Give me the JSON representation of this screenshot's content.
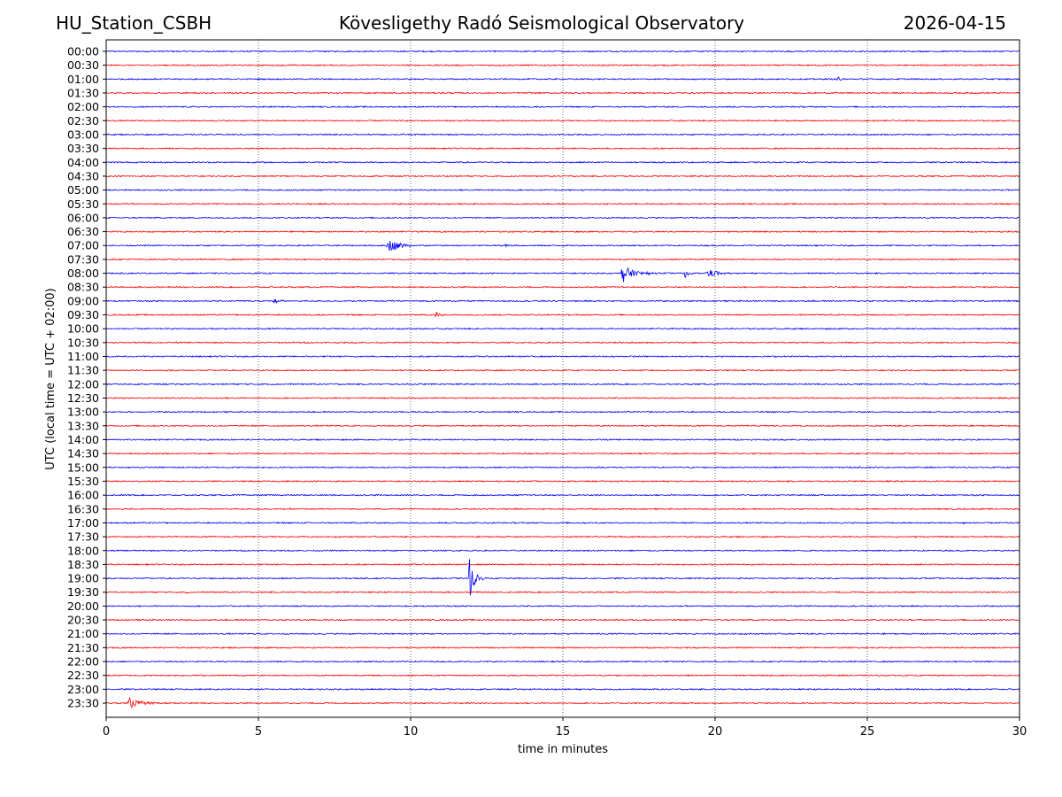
{
  "header": {
    "station": "HU_Station_CSBH",
    "observatory": "Kövesligethy Radó Seismological Observatory",
    "date": "2026-04-15"
  },
  "chart_data": {
    "type": "line",
    "xlabel": "time in minutes",
    "ylabel": "UTC (local time = UTC + 02:00)",
    "xlim": [
      0,
      30
    ],
    "xticks": [
      0,
      5,
      10,
      15,
      20,
      25,
      30
    ],
    "grid": "vertical dotted lines at x ticks",
    "colors": [
      "#0000ff",
      "#ff0000"
    ],
    "rows": [
      "00:00",
      "00:30",
      "01:00",
      "01:30",
      "02:00",
      "02:30",
      "03:00",
      "03:30",
      "04:00",
      "04:30",
      "05:00",
      "05:30",
      "06:00",
      "06:30",
      "07:00",
      "07:30",
      "08:00",
      "08:30",
      "09:00",
      "09:30",
      "10:00",
      "10:30",
      "11:00",
      "11:30",
      "12:00",
      "12:30",
      "13:00",
      "13:30",
      "14:00",
      "14:30",
      "15:00",
      "15:30",
      "16:00",
      "16:30",
      "17:00",
      "17:30",
      "18:00",
      "18:30",
      "19:00",
      "19:30",
      "20:00",
      "20:30",
      "21:00",
      "21:30",
      "22:00",
      "22:30",
      "23:00",
      "23:30"
    ],
    "events": [
      {
        "row": "01:00",
        "start_min": 24.0,
        "duration_min": 0.3,
        "amplitude": 0.35
      },
      {
        "row": "01:00",
        "start_min": 19.3,
        "duration_min": 0.25,
        "amplitude": 0.15
      },
      {
        "row": "07:00",
        "start_min": 9.2,
        "duration_min": 1.5,
        "amplitude": 0.6
      },
      {
        "row": "07:00",
        "start_min": 13.1,
        "duration_min": 0.4,
        "amplitude": 0.15
      },
      {
        "row": "08:00",
        "start_min": 16.9,
        "duration_min": 1.4,
        "amplitude": 0.8
      },
      {
        "row": "08:00",
        "start_min": 19.0,
        "duration_min": 0.3,
        "amplitude": 0.8
      },
      {
        "row": "08:00",
        "start_min": 19.7,
        "duration_min": 1.2,
        "amplitude": 0.45
      },
      {
        "row": "09:00",
        "start_min": 5.5,
        "duration_min": 0.6,
        "amplitude": 0.2
      },
      {
        "row": "09:30",
        "start_min": 10.8,
        "duration_min": 0.5,
        "amplitude": 0.35
      },
      {
        "row": "17:00",
        "start_min": 28.1,
        "duration_min": 0.3,
        "amplitude": 0.15
      },
      {
        "row": "19:00",
        "start_min": 11.9,
        "duration_min": 0.6,
        "amplitude": 1.9
      },
      {
        "row": "19:30",
        "start_min": 2.6,
        "duration_min": 0.2,
        "amplitude": 0.15
      },
      {
        "row": "23:30",
        "start_min": 0.7,
        "duration_min": 1.4,
        "amplitude": 0.45
      }
    ]
  }
}
